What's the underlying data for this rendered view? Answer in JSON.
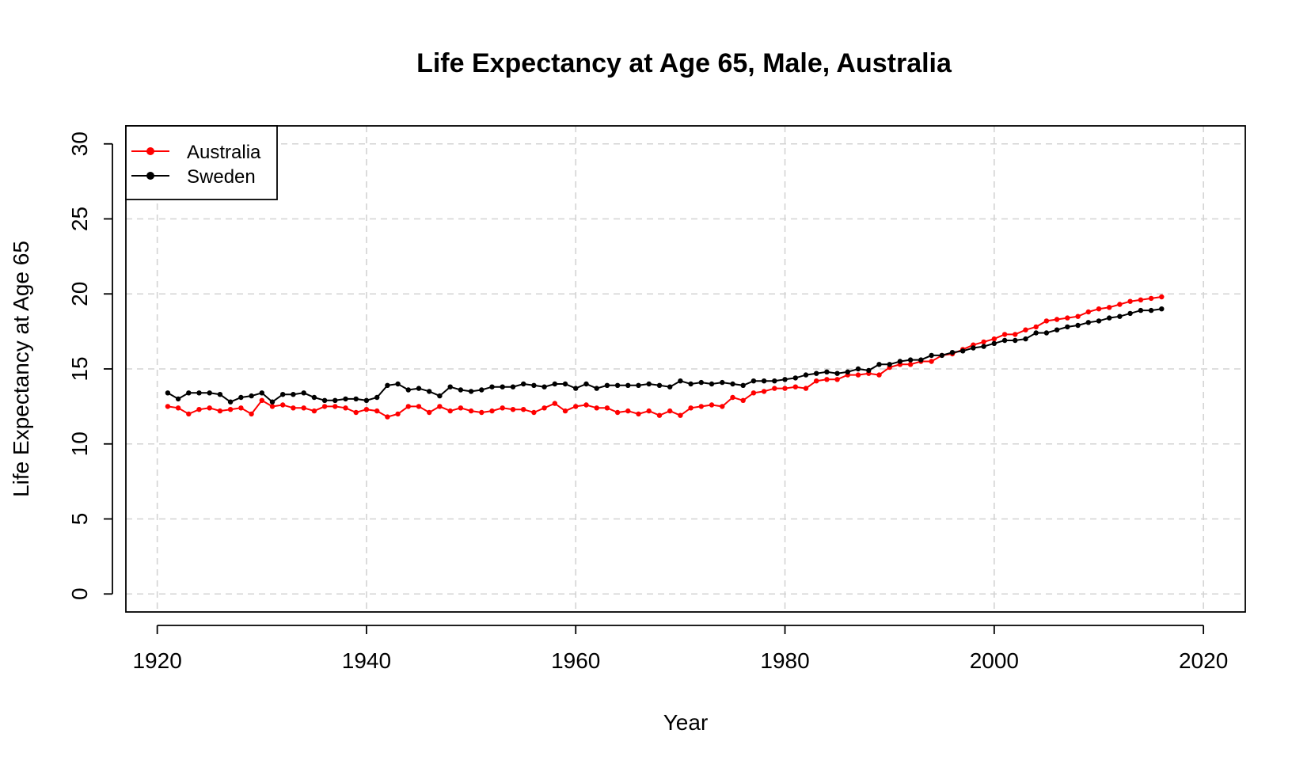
{
  "chart_data": {
    "type": "line",
    "title": "Life Expectancy at Age 65, Male, Australia",
    "xlabel": "Year",
    "ylabel": "Life Expectancy at Age 65",
    "xlim": [
      1917,
      2024
    ],
    "ylim": [
      -1.2,
      31.2
    ],
    "xticks": [
      1920,
      1940,
      1960,
      1980,
      2000,
      2020
    ],
    "yticks": [
      0,
      5,
      10,
      15,
      20,
      25,
      30
    ],
    "grid": true,
    "legend_position": "top-left",
    "x": [
      1921,
      1922,
      1923,
      1924,
      1925,
      1926,
      1927,
      1928,
      1929,
      1930,
      1931,
      1932,
      1933,
      1934,
      1935,
      1936,
      1937,
      1938,
      1939,
      1940,
      1941,
      1942,
      1943,
      1944,
      1945,
      1946,
      1947,
      1948,
      1949,
      1950,
      1951,
      1952,
      1953,
      1954,
      1955,
      1956,
      1957,
      1958,
      1959,
      1960,
      1961,
      1962,
      1963,
      1964,
      1965,
      1966,
      1967,
      1968,
      1969,
      1970,
      1971,
      1972,
      1973,
      1974,
      1975,
      1976,
      1977,
      1978,
      1979,
      1980,
      1981,
      1982,
      1983,
      1984,
      1985,
      1986,
      1987,
      1988,
      1989,
      1990,
      1991,
      1992,
      1993,
      1994,
      1995,
      1996,
      1997,
      1998,
      1999,
      2000,
      2001,
      2002,
      2003,
      2004,
      2005,
      2006,
      2007,
      2008,
      2009,
      2010,
      2011,
      2012,
      2013,
      2014,
      2015,
      2016
    ],
    "series": [
      {
        "name": "Australia",
        "color": "#ff0000",
        "values": [
          12.5,
          12.4,
          12.0,
          12.3,
          12.4,
          12.2,
          12.3,
          12.4,
          12.0,
          12.9,
          12.5,
          12.6,
          12.4,
          12.4,
          12.2,
          12.5,
          12.5,
          12.4,
          12.1,
          12.3,
          12.2,
          11.8,
          12.0,
          12.5,
          12.5,
          12.1,
          12.5,
          12.2,
          12.4,
          12.2,
          12.1,
          12.2,
          12.4,
          12.3,
          12.3,
          12.1,
          12.4,
          12.7,
          12.2,
          12.5,
          12.6,
          12.4,
          12.4,
          12.1,
          12.2,
          12.0,
          12.2,
          11.9,
          12.2,
          11.9,
          12.4,
          12.5,
          12.6,
          12.5,
          13.1,
          12.9,
          13.4,
          13.5,
          13.7,
          13.7,
          13.8,
          13.7,
          14.2,
          14.3,
          14.3,
          14.6,
          14.6,
          14.7,
          14.6,
          15.1,
          15.3,
          15.3,
          15.5,
          15.5,
          15.9,
          16.0,
          16.3,
          16.6,
          16.8,
          17.0,
          17.3,
          17.3,
          17.6,
          17.8,
          18.2,
          18.3,
          18.4,
          18.5,
          18.8,
          19.0,
          19.1,
          19.3,
          19.5,
          19.6,
          19.7,
          19.8
        ]
      },
      {
        "name": "Sweden",
        "color": "#000000",
        "values": [
          13.4,
          13.0,
          13.4,
          13.4,
          13.4,
          13.3,
          12.8,
          13.1,
          13.2,
          13.4,
          12.8,
          13.3,
          13.3,
          13.4,
          13.1,
          12.9,
          12.9,
          13.0,
          13.0,
          12.9,
          13.1,
          13.9,
          14.0,
          13.6,
          13.7,
          13.5,
          13.2,
          13.8,
          13.6,
          13.5,
          13.6,
          13.8,
          13.8,
          13.8,
          14.0,
          13.9,
          13.8,
          14.0,
          14.0,
          13.7,
          14.0,
          13.7,
          13.9,
          13.9,
          13.9,
          13.9,
          14.0,
          13.9,
          13.8,
          14.2,
          14.0,
          14.1,
          14.0,
          14.1,
          14.0,
          13.9,
          14.2,
          14.2,
          14.2,
          14.3,
          14.4,
          14.6,
          14.7,
          14.8,
          14.7,
          14.8,
          15.0,
          14.9,
          15.3,
          15.3,
          15.5,
          15.6,
          15.6,
          15.9,
          15.9,
          16.1,
          16.2,
          16.4,
          16.5,
          16.7,
          16.9,
          16.9,
          17.0,
          17.4,
          17.4,
          17.6,
          17.8,
          17.9,
          18.1,
          18.2,
          18.4,
          18.5,
          18.7,
          18.9,
          18.9,
          19.0
        ]
      }
    ]
  }
}
